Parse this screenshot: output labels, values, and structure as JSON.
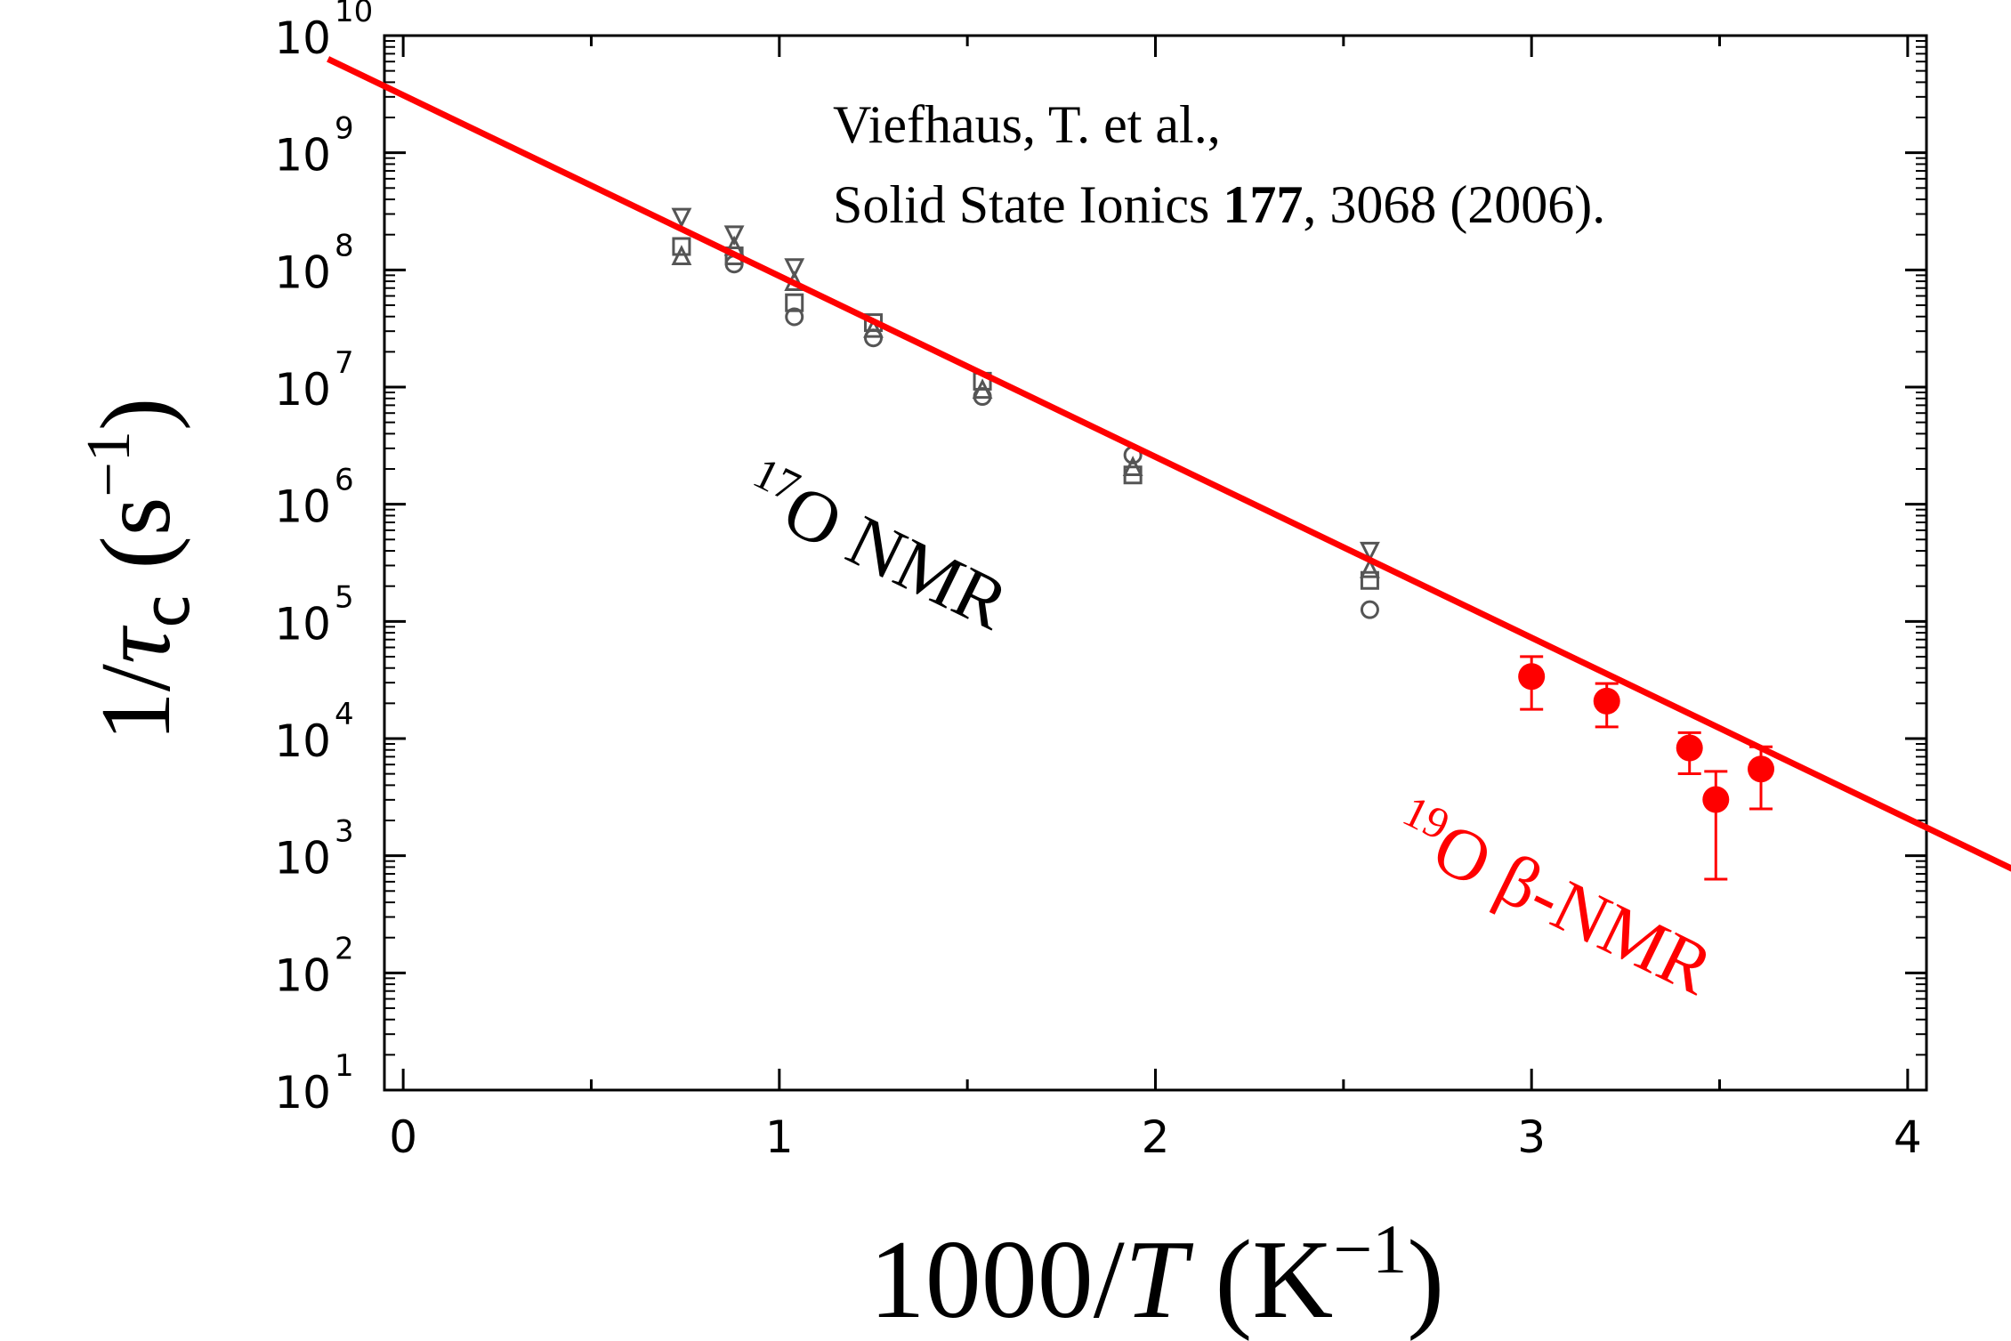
{
  "chart_data": {
    "type": "scatter",
    "xlabel": {
      "pre": "1000/",
      "var": "T",
      "open": " (K",
      "sup": "−1",
      "close": ")"
    },
    "ylabel": {
      "pre": "1/",
      "var": "τ",
      "sub": "c",
      "open": " (s",
      "sup": "−1",
      "close": ")"
    },
    "xlim": [
      -0.05,
      4.05
    ],
    "ylim": [
      1,
      10
    ],
    "y_scale": "log",
    "x_ticks": [
      {
        "value": 0,
        "label": "0"
      },
      {
        "value": 1,
        "label": "1"
      },
      {
        "value": 2,
        "label": "2"
      },
      {
        "value": 3,
        "label": "3"
      },
      {
        "value": 4,
        "label": "4"
      }
    ],
    "y_ticks": [
      {
        "exp": 1,
        "base": "10",
        "sup": "1"
      },
      {
        "exp": 2,
        "base": "10",
        "sup": "2"
      },
      {
        "exp": 3,
        "base": "10",
        "sup": "3"
      },
      {
        "exp": 4,
        "base": "10",
        "sup": "4"
      },
      {
        "exp": 5,
        "base": "10",
        "sup": "5"
      },
      {
        "exp": 6,
        "base": "10",
        "sup": "6"
      },
      {
        "exp": 7,
        "base": "10",
        "sup": "7"
      },
      {
        "exp": 8,
        "base": "10",
        "sup": "8"
      },
      {
        "exp": 9,
        "base": "10",
        "sup": "9"
      },
      {
        "exp": 10,
        "base": "10",
        "sup": "10"
      }
    ],
    "grid": false,
    "fit_line": {
      "color": "#ff0000",
      "points": [
        [
          -0.2,
          9.8
        ],
        [
          4.4,
          2.7
        ]
      ]
    },
    "series": [
      {
        "key": "17O",
        "color": "#555555",
        "marker": "open",
        "points": [
          [
            0.74,
            8.45,
            "triangle-down"
          ],
          [
            0.74,
            8.2,
            "square"
          ],
          [
            0.74,
            8.12,
            "triangle-up"
          ],
          [
            0.88,
            8.3,
            "triangle-down"
          ],
          [
            0.88,
            8.2,
            "triangle-up"
          ],
          [
            0.88,
            8.12,
            "square"
          ],
          [
            0.88,
            8.05,
            "circle"
          ],
          [
            1.04,
            8.02,
            "triangle-down"
          ],
          [
            1.04,
            7.9,
            "triangle-up"
          ],
          [
            1.04,
            7.72,
            "square"
          ],
          [
            1.04,
            7.6,
            "circle"
          ],
          [
            1.25,
            7.55,
            "square"
          ],
          [
            1.25,
            7.5,
            "triangle-up"
          ],
          [
            1.25,
            7.42,
            "circle"
          ],
          [
            1.54,
            7.05,
            "square"
          ],
          [
            1.54,
            6.98,
            "triangle-up"
          ],
          [
            1.54,
            6.92,
            "circle"
          ],
          [
            1.94,
            6.42,
            "circle"
          ],
          [
            1.94,
            6.32,
            "triangle-up"
          ],
          [
            1.94,
            6.25,
            "square"
          ],
          [
            2.57,
            5.6,
            "triangle-down"
          ],
          [
            2.57,
            5.45,
            "triangle-up"
          ],
          [
            2.57,
            5.35,
            "square"
          ],
          [
            2.57,
            5.1,
            "circle"
          ]
        ]
      },
      {
        "key": "19O",
        "color": "#ff0000",
        "marker": "filled-circle",
        "points": [
          {
            "x": 3.0,
            "y": 4.53,
            "err_lo": 4.25,
            "err_hi": 4.7
          },
          {
            "x": 3.2,
            "y": 4.32,
            "err_lo": 4.1,
            "err_hi": 4.47
          },
          {
            "x": 3.42,
            "y": 3.92,
            "err_lo": 3.7,
            "err_hi": 4.05
          },
          {
            "x": 3.49,
            "y": 3.48,
            "err_lo": 2.8,
            "err_hi": 3.72
          },
          {
            "x": 3.61,
            "y": 3.74,
            "err_lo": 3.4,
            "err_hi": 3.93
          }
        ]
      }
    ],
    "annotations": {
      "citation_line1": "Viefhaus, T. et al.,",
      "citation_line2_a": "Solid State Ionics ",
      "citation_line2_b": "177",
      "citation_line2_c": ", 3068 (2006).",
      "o17_sup": "17",
      "o17_text": "O NMR",
      "o19_sup": "19",
      "o19_text": "O β-NMR"
    }
  }
}
